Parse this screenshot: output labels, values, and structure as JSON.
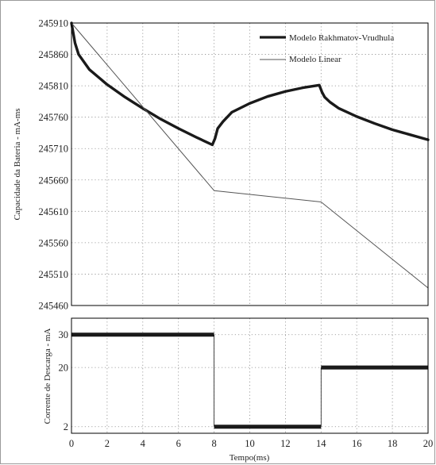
{
  "chart_data": [
    {
      "type": "line",
      "panel": "top",
      "ylabel": "Capacidade da Bateria - mA-ms",
      "xlim": [
        0,
        20
      ],
      "ylim": [
        245460,
        245910
      ],
      "xticks": [
        0,
        2,
        4,
        6,
        8,
        10,
        12,
        14,
        16,
        18,
        20
      ],
      "yticks": [
        245460,
        245510,
        245560,
        245610,
        245660,
        245710,
        245760,
        245810,
        245860,
        245910
      ],
      "grid": true,
      "legend_position": "top-right",
      "series": [
        {
          "name": "Modelo Rakhmatov-Vrudhula",
          "color": "#1a1a1a",
          "points": [
            [
              0,
              245910
            ],
            [
              0.2,
              245878
            ],
            [
              0.4,
              245860
            ],
            [
              1,
              245836
            ],
            [
              2,
              245812
            ],
            [
              3,
              245792
            ],
            [
              4,
              245774
            ],
            [
              5,
              245757
            ],
            [
              6,
              245742
            ],
            [
              7,
              245728
            ],
            [
              7.9,
              245716
            ],
            [
              8.05,
              245726
            ],
            [
              8.2,
              245742
            ],
            [
              8.5,
              245753
            ],
            [
              9,
              245768
            ],
            [
              10,
              245782
            ],
            [
              11,
              245793
            ],
            [
              12,
              245801
            ],
            [
              13,
              245807
            ],
            [
              13.9,
              245811
            ],
            [
              14.05,
              245800
            ],
            [
              14.2,
              245792
            ],
            [
              14.5,
              245784
            ],
            [
              15,
              245774
            ],
            [
              16,
              245761
            ],
            [
              17,
              245750
            ],
            [
              18,
              245740
            ],
            [
              19,
              245732
            ],
            [
              20,
              245724
            ]
          ]
        },
        {
          "name": "Modelo Linear",
          "color": "#555555",
          "points": [
            [
              0,
              245910
            ],
            [
              8,
              245643
            ],
            [
              14,
              245625
            ],
            [
              20,
              245488
            ]
          ]
        }
      ]
    },
    {
      "type": "line",
      "panel": "bottom",
      "xlabel": "Tempo(ms)",
      "ylabel": "Corrente de Descarga - mA",
      "xlim": [
        0,
        20
      ],
      "ylim": [
        0,
        35
      ],
      "xticks": [
        0,
        2,
        4,
        6,
        8,
        10,
        12,
        14,
        16,
        18,
        20
      ],
      "yticks": [
        2,
        20,
        30
      ],
      "grid": true,
      "series": [
        {
          "color": "#1a1a1a",
          "segments": [
            [
              0,
              8,
              30
            ],
            [
              8,
              14,
              2
            ],
            [
              14,
              20,
              20
            ]
          ]
        }
      ]
    }
  ]
}
